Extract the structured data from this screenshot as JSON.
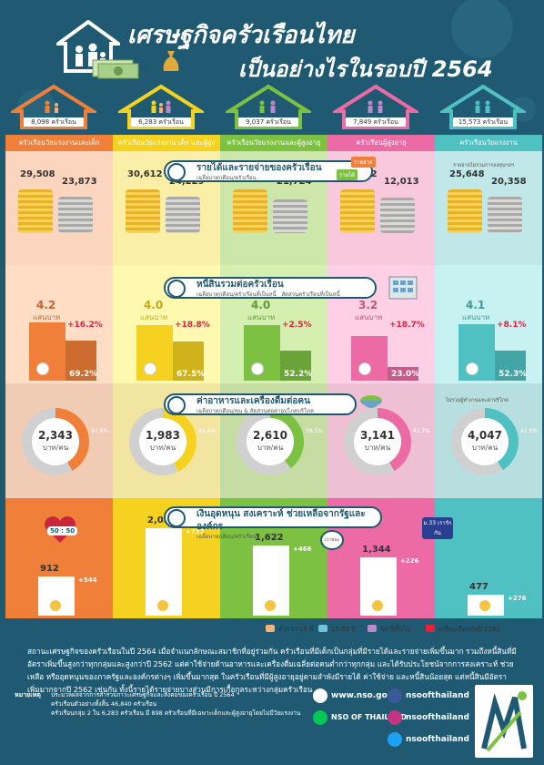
{
  "title_line1": "เศรษฐกิจครัวเรือนไทย",
  "title_line2": "เป็นอย่างไรในรอบปี 2564",
  "groups": [
    {
      "count": "8,098 ครัวเรือน",
      "label": "ครัวเรือนวัยแรงงานและเด็ก",
      "color": "#f07f3a",
      "light": "#fbd5bd",
      "inc": "29,508",
      "exp": "23,873",
      "debt": "4.2",
      "debt_unit": "แสนบาท",
      "debt_chg": "+16.2%",
      "house_share": "69.2%",
      "food": "2,343",
      "food_share": "41.6%",
      "welfare": "912",
      "welfare_chg": "+544"
    },
    {
      "count": "6,283 ครัวเรือน",
      "label": "ครัวเรือนวัยแรงงาน เด็ก และผู้สูงอายุ",
      "color": "#f5d21f",
      "light": "#fbefa8",
      "inc": "30,612",
      "exp": "24,229",
      "debt": "4.0",
      "debt_unit": "แสนบาท",
      "debt_chg": "+18.8%",
      "house_share": "67.5%",
      "food": "1,983",
      "food_share": "42.4%",
      "welfare": "2,024",
      "welfare_chg": "+737"
    },
    {
      "count": "9,037 ครัวเรือน",
      "label": "ครัวเรือนวัยแรงงานและผู้สูงอายุ",
      "color": "#7dc142",
      "light": "#cde6a9",
      "inc": "29,565",
      "exp": "21,724",
      "debt": "4.0",
      "debt_unit": "แสนบาท",
      "debt_chg": "+2.5%",
      "house_share": "52.2%",
      "food": "2,610",
      "food_share": "39.5%",
      "welfare": "1,622",
      "welfare_chg": "+466"
    },
    {
      "count": "7,849 ครัวเรือน",
      "label": "ครัวเรือนผู้สูงอายุ",
      "color": "#ec6ba4",
      "light": "#f8c8dc",
      "inc": "15,722",
      "exp": "12,013",
      "debt": "3.2",
      "debt_unit": "แสนบาท",
      "debt_chg": "+18.7%",
      "house_share": "23.0%",
      "food": "3,141",
      "food_share": "41.7%",
      "welfare": "1,344",
      "welfare_chg": "+226"
    },
    {
      "count": "15,573 ครัวเรือน",
      "label": "ครัวเรือนวัยแรงงาน",
      "color": "#4fc1c2",
      "light": "#c0e8e8",
      "inc": "25,648",
      "exp": "20,358",
      "debt": "4.1",
      "debt_unit": "แสนบาท",
      "debt_chg": "+8.1%",
      "house_share": "52.3%",
      "food": "4,047",
      "food_share": "41.0%",
      "welfare": "477",
      "welfare_chg": "+276"
    }
  ],
  "sections": {
    "income": {
      "title": "รายได้และรายจ่ายของครัวเรือน",
      "sub": "เฉลี่ยบาท/เดือน/ครัวเรือน",
      "tag_income": "รายได้",
      "tag_exp": "รายจ่าย",
      "note": "รายจ่ายไม่รวมการลงทุนฯลฯ"
    },
    "debt": {
      "title": "หนี้สินรวมต่อครัวเรือน",
      "sub": "เฉลี่ยบาท/เดือน/ครัวเรือนที่เป็นหนี้",
      "sub2": "สัดส่วนครัวเรือนที่เป็นหนี้"
    },
    "food": {
      "title": "ค่าอาหารและเครื่องดื่มต่อคน",
      "sub": "เฉลี่ยบาท/เดือน/คน",
      "sub2": "& สัดส่วนต่อค่าอุปโภคบริโภค",
      "note": "ไม่รวมผู้ทำงานและค่าบริโภค",
      "unit": "บาท/คน"
    },
    "welfare": {
      "title": "เงินอุดหนุน สงเคราะห์ ช่วยเหลือจากรัฐและองค์กร",
      "sub": "เฉลี่ยบาท/เดือน/ครัวเรือน"
    }
  },
  "legend": {
    "age1": "ต่ำกว่า 15 ปี",
    "age2": "15-59 ปี",
    "age3": "60 ปีขึ้นไป",
    "compare": "เปรียบเทียบกับปี 2562"
  },
  "badge_left": "50 : 50",
  "badge_right": "ม.33 เรารักกัน",
  "badge_mid": "เราชนะ",
  "summary": "สถานะเศรษฐกิจของครัวเรือนในปี 2564 เมื่อจำแนกลักษณะสมาชิกที่อยู่ร่วมกัน ครัวเรือนที่มีเด็กเป็นกลุ่มที่มีรายได้และรายจ่ายเพิ่มขึ้นมาก รวมถึงหนี้สินที่มีอัตราเพิ่มขึ้นสูงกว่าทุกกลุ่มและสูงกว่าปี 2562 แต่ค่าใช้จ่ายด้านอาหารและเครื่องดื่มเฉลี่ยต่อคนต่ำกว่าทุกกลุ่ม และได้รับประโยชน์จากการสงเคราะห์ ช่วยเหลือ หรืออุดหนุนของภาครัฐและองค์กรต่างๆ เพิ่มขึ้นมากสุด ในครัวเรือนที่มีผู้สูงอายุอยู่ตามลำพังมีรายได้ ค่าใช้จ่าย และหนี้สินน้อยสุด แต่หนี้สินมีอัตราเพิ่มมากจากปี 2562 เช่นกัน ทั้งนี้รายได้รายจ่ายบางส่วนมีการเกื้อกูลระหว่างกลุ่มครัวเรือน",
  "notes": {
    "label": "หมายเหตุ",
    "line1": "ประมวลผลจากการสำรวจภาวะเศรษฐกิจและสังคมของครัวเรือน ปี 2564",
    "line2": "ครัวเรือนตัวอย่างทั้งสิ้น 46,840 ครัวเรือน",
    "line3": "ครัวเรือนกลุ่ม 2 ใน 6,283 ครัวเรือน มี 898 ครัวเรือนที่มีเฉพาะเด็กและผู้สูงอายุโดยไม่มีวัยแรงงาน"
  },
  "contact": {
    "web": "www.nso.go.th",
    "fb": "nsoofthailand",
    "ig": "nsoofthailand",
    "line": "NSO OF THAILAND",
    "tw": "nsoofthailand"
  }
}
